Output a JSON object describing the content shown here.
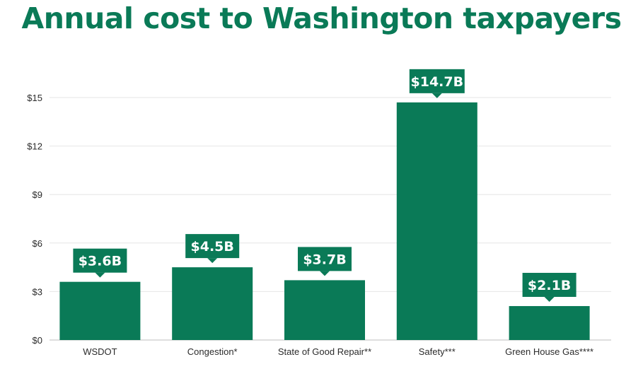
{
  "title": "Annual cost to Washington taxpayers",
  "colors": {
    "accent": "#0a7a57",
    "bar": "#0a7a57",
    "grid": "#e6e6e6",
    "axis": "#bdbdbd",
    "text": "#2b2b2b"
  },
  "chart_data": {
    "type": "bar",
    "title": "Annual cost to Washington taxpayers",
    "categories": [
      "WSDOT",
      "Congestion*",
      "State of Good Repair**",
      "Safety***",
      "Green House Gas****"
    ],
    "values": [
      3.6,
      4.5,
      3.7,
      14.7,
      2.1
    ],
    "data_labels": [
      "$3.6B",
      "$4.5B",
      "$3.7B",
      "$14.7B",
      "$2.1B"
    ],
    "y_ticks": [
      0,
      3,
      6,
      9,
      12,
      15
    ],
    "y_tick_labels": [
      "$0",
      "$3",
      "$6",
      "$9",
      "$12",
      "$15"
    ],
    "ylim": [
      0,
      15
    ],
    "xlabel": "",
    "ylabel": "",
    "grid": true,
    "legend": "none"
  }
}
